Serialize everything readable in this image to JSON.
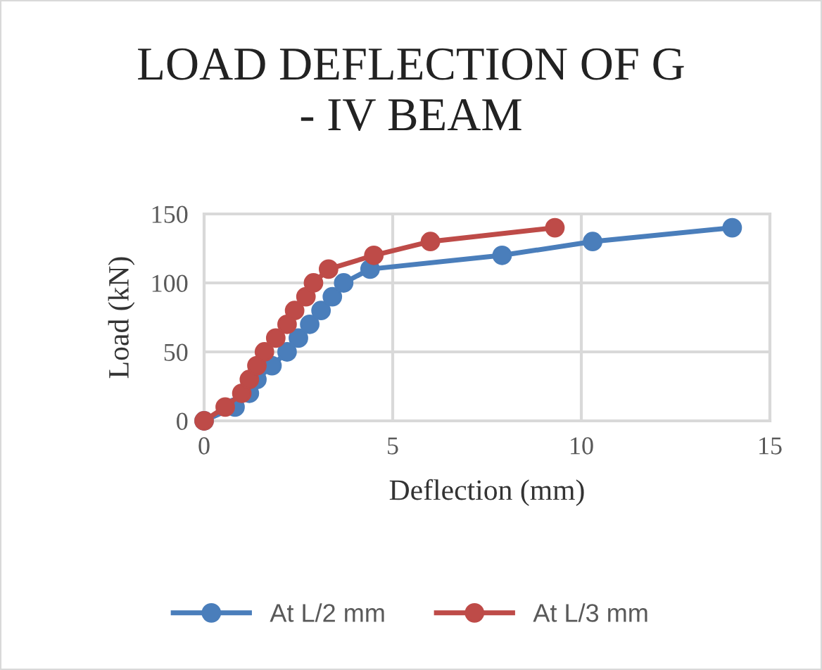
{
  "chart_data": {
    "type": "line",
    "title": "LOAD DEFLECTION OF G\n- IV BEAM",
    "xlabel": "Deflection (mm)",
    "ylabel": "Load (kN)",
    "series": [
      {
        "name": "At L/2 mm",
        "color": "#4a7ebb",
        "x": [
          0,
          0.82,
          1.2,
          1.4,
          1.8,
          2.2,
          2.5,
          2.8,
          3.1,
          3.4,
          3.7,
          4.4,
          7.9,
          10.3,
          14.0
        ],
        "values": [
          0,
          10,
          20,
          30,
          40,
          50,
          60,
          70,
          80,
          90,
          100,
          110,
          120,
          130,
          140
        ]
      },
      {
        "name": "At L/3 mm",
        "color": "#be4b48",
        "x": [
          0,
          0.56,
          1.0,
          1.2,
          1.4,
          1.6,
          1.9,
          2.2,
          2.4,
          2.7,
          2.9,
          3.3,
          4.5,
          6.0,
          9.3
        ],
        "values": [
          0,
          10,
          20,
          30,
          40,
          50,
          60,
          70,
          80,
          90,
          100,
          110,
          120,
          130,
          140
        ]
      }
    ],
    "xlim": [
      0,
      15
    ],
    "xticks": [
      0,
      5,
      10,
      15
    ],
    "ylim": [
      0,
      150
    ],
    "yticks": [
      0,
      50,
      100,
      150
    ],
    "grid": true,
    "legend": "bottom",
    "marker": "circle",
    "line_style": "solid"
  }
}
